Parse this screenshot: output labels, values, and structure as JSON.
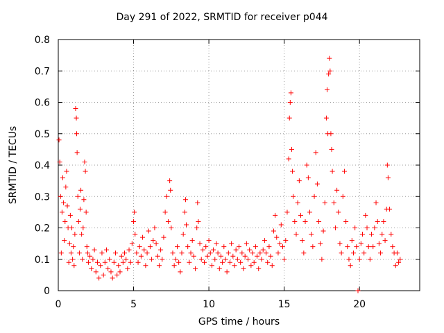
{
  "chart_data": {
    "type": "scatter",
    "title": "Day 291 of 2022, SRMTID for receiver p044",
    "xlabel": "GPS time / hours",
    "ylabel": "SRMTID / TECUs",
    "xlim": [
      0,
      24
    ],
    "ylim": [
      0,
      0.8
    ],
    "xticks": [
      0,
      5,
      10,
      15,
      20
    ],
    "yticks": [
      0,
      0.1,
      0.2,
      0.3,
      0.4,
      0.5,
      0.6,
      0.7,
      0.8
    ],
    "grid": true,
    "marker": "+",
    "color": "#ff0000",
    "series": [
      {
        "name": "p044",
        "points": [
          [
            0.05,
            0.48
          ],
          [
            0.1,
            0.41
          ],
          [
            0.15,
            0.3
          ],
          [
            0.2,
            0.12
          ],
          [
            0.25,
            0.25
          ],
          [
            0.3,
            0.36
          ],
          [
            0.35,
            0.28
          ],
          [
            0.4,
            0.16
          ],
          [
            0.45,
            0.22
          ],
          [
            0.5,
            0.33
          ],
          [
            0.55,
            0.38
          ],
          [
            0.6,
            0.27
          ],
          [
            0.65,
            0.2
          ],
          [
            0.7,
            0.09
          ],
          [
            0.75,
            0.15
          ],
          [
            0.8,
            0.24
          ],
          [
            0.85,
            0.12
          ],
          [
            0.9,
            0.2
          ],
          [
            0.95,
            0.1
          ],
          [
            1.0,
            0.14
          ],
          [
            1.05,
            0.08
          ],
          [
            1.1,
            0.18
          ],
          [
            1.15,
            0.58
          ],
          [
            1.2,
            0.55
          ],
          [
            1.22,
            0.5
          ],
          [
            1.25,
            0.44
          ],
          [
            1.3,
            0.3
          ],
          [
            1.35,
            0.22
          ],
          [
            1.4,
            0.12
          ],
          [
            1.45,
            0.26
          ],
          [
            1.5,
            0.32
          ],
          [
            1.55,
            0.18
          ],
          [
            1.6,
            0.1
          ],
          [
            1.65,
            0.2
          ],
          [
            1.7,
            0.29
          ],
          [
            1.75,
            0.41
          ],
          [
            1.8,
            0.38
          ],
          [
            1.85,
            0.25
          ],
          [
            1.9,
            0.14
          ],
          [
            1.95,
            0.12
          ],
          [
            2.0,
            0.09
          ],
          [
            2.1,
            0.11
          ],
          [
            2.2,
            0.07
          ],
          [
            2.3,
            0.1
          ],
          [
            2.4,
            0.13
          ],
          [
            2.5,
            0.06
          ],
          [
            2.6,
            0.09
          ],
          [
            2.7,
            0.04
          ],
          [
            2.8,
            0.08
          ],
          [
            2.9,
            0.12
          ],
          [
            3.0,
            0.05
          ],
          [
            3.1,
            0.09
          ],
          [
            3.2,
            0.13
          ],
          [
            3.3,
            0.07
          ],
          [
            3.4,
            0.1
          ],
          [
            3.5,
            0.06
          ],
          [
            3.6,
            0.04
          ],
          [
            3.7,
            0.09
          ],
          [
            3.8,
            0.12
          ],
          [
            3.9,
            0.05
          ],
          [
            4.0,
            0.08
          ],
          [
            4.1,
            0.06
          ],
          [
            4.2,
            0.11
          ],
          [
            4.3,
            0.09
          ],
          [
            4.4,
            0.12
          ],
          [
            4.5,
            0.1
          ],
          [
            4.6,
            0.07
          ],
          [
            4.7,
            0.13
          ],
          [
            4.8,
            0.09
          ],
          [
            4.9,
            0.15
          ],
          [
            5.0,
            0.22
          ],
          [
            5.05,
            0.25
          ],
          [
            5.1,
            0.18
          ],
          [
            5.2,
            0.12
          ],
          [
            5.3,
            0.09
          ],
          [
            5.4,
            0.14
          ],
          [
            5.5,
            0.11
          ],
          [
            5.6,
            0.17
          ],
          [
            5.7,
            0.13
          ],
          [
            5.8,
            0.08
          ],
          [
            5.9,
            0.12
          ],
          [
            6.0,
            0.19
          ],
          [
            6.1,
            0.14
          ],
          [
            6.2,
            0.1
          ],
          [
            6.3,
            0.16
          ],
          [
            6.4,
            0.2
          ],
          [
            6.5,
            0.15
          ],
          [
            6.6,
            0.11
          ],
          [
            6.7,
            0.08
          ],
          [
            6.8,
            0.13
          ],
          [
            6.9,
            0.1
          ],
          [
            7.0,
            0.17
          ],
          [
            7.1,
            0.25
          ],
          [
            7.2,
            0.3
          ],
          [
            7.3,
            0.22
          ],
          [
            7.4,
            0.35
          ],
          [
            7.45,
            0.32
          ],
          [
            7.5,
            0.2
          ],
          [
            7.6,
            0.12
          ],
          [
            7.7,
            0.08
          ],
          [
            7.8,
            0.1
          ],
          [
            7.9,
            0.14
          ],
          [
            8.0,
            0.09
          ],
          [
            8.1,
            0.06
          ],
          [
            8.2,
            0.12
          ],
          [
            8.3,
            0.18
          ],
          [
            8.4,
            0.25
          ],
          [
            8.45,
            0.29
          ],
          [
            8.5,
            0.21
          ],
          [
            8.6,
            0.14
          ],
          [
            8.7,
            0.09
          ],
          [
            8.8,
            0.12
          ],
          [
            8.9,
            0.16
          ],
          [
            9.0,
            0.11
          ],
          [
            9.1,
            0.07
          ],
          [
            9.2,
            0.2
          ],
          [
            9.25,
            0.28
          ],
          [
            9.3,
            0.22
          ],
          [
            9.4,
            0.15
          ],
          [
            9.5,
            0.1
          ],
          [
            9.6,
            0.13
          ],
          [
            9.7,
            0.09
          ],
          [
            9.8,
            0.14
          ],
          [
            9.9,
            0.11
          ],
          [
            10.0,
            0.16
          ],
          [
            10.1,
            0.12
          ],
          [
            10.2,
            0.08
          ],
          [
            10.3,
            0.13
          ],
          [
            10.4,
            0.1
          ],
          [
            10.5,
            0.15
          ],
          [
            10.6,
            0.12
          ],
          [
            10.7,
            0.07
          ],
          [
            10.8,
            0.11
          ],
          [
            10.9,
            0.09
          ],
          [
            11.0,
            0.14
          ],
          [
            11.1,
            0.1
          ],
          [
            11.2,
            0.06
          ],
          [
            11.3,
            0.12
          ],
          [
            11.4,
            0.09
          ],
          [
            11.5,
            0.15
          ],
          [
            11.6,
            0.11
          ],
          [
            11.7,
            0.08
          ],
          [
            11.8,
            0.13
          ],
          [
            11.9,
            0.1
          ],
          [
            12.0,
            0.14
          ],
          [
            12.1,
            0.09
          ],
          [
            12.2,
            0.12
          ],
          [
            12.3,
            0.07
          ],
          [
            12.4,
            0.11
          ],
          [
            12.5,
            0.15
          ],
          [
            12.6,
            0.1
          ],
          [
            12.7,
            0.13
          ],
          [
            12.8,
            0.08
          ],
          [
            12.9,
            0.12
          ],
          [
            13.0,
            0.09
          ],
          [
            13.1,
            0.14
          ],
          [
            13.2,
            0.11
          ],
          [
            13.3,
            0.07
          ],
          [
            13.4,
            0.12
          ],
          [
            13.5,
            0.1
          ],
          [
            13.6,
            0.13
          ],
          [
            13.7,
            0.16
          ],
          [
            13.8,
            0.12
          ],
          [
            13.9,
            0.09
          ],
          [
            14.0,
            0.14
          ],
          [
            14.1,
            0.11
          ],
          [
            14.2,
            0.08
          ],
          [
            14.3,
            0.19
          ],
          [
            14.4,
            0.24
          ],
          [
            14.5,
            0.17
          ],
          [
            14.6,
            0.12
          ],
          [
            14.7,
            0.15
          ],
          [
            14.8,
            0.21
          ],
          [
            14.9,
            0.14
          ],
          [
            15.0,
            0.1
          ],
          [
            15.1,
            0.16
          ],
          [
            15.2,
            0.25
          ],
          [
            15.3,
            0.42
          ],
          [
            15.35,
            0.55
          ],
          [
            15.4,
            0.6
          ],
          [
            15.45,
            0.63
          ],
          [
            15.5,
            0.45
          ],
          [
            15.55,
            0.38
          ],
          [
            15.6,
            0.3
          ],
          [
            15.7,
            0.22
          ],
          [
            15.8,
            0.18
          ],
          [
            15.9,
            0.28
          ],
          [
            16.0,
            0.35
          ],
          [
            16.1,
            0.24
          ],
          [
            16.2,
            0.16
          ],
          [
            16.3,
            0.12
          ],
          [
            16.4,
            0.22
          ],
          [
            16.5,
            0.4
          ],
          [
            16.6,
            0.36
          ],
          [
            16.7,
            0.25
          ],
          [
            16.8,
            0.18
          ],
          [
            16.9,
            0.14
          ],
          [
            17.0,
            0.3
          ],
          [
            17.1,
            0.44
          ],
          [
            17.2,
            0.34
          ],
          [
            17.3,
            0.22
          ],
          [
            17.4,
            0.15
          ],
          [
            17.5,
            0.1
          ],
          [
            17.6,
            0.19
          ],
          [
            17.7,
            0.28
          ],
          [
            17.8,
            0.55
          ],
          [
            17.85,
            0.64
          ],
          [
            17.9,
            0.5
          ],
          [
            17.95,
            0.69
          ],
          [
            18.0,
            0.74
          ],
          [
            18.05,
            0.7
          ],
          [
            18.1,
            0.5
          ],
          [
            18.15,
            0.45
          ],
          [
            18.2,
            0.38
          ],
          [
            18.3,
            0.28
          ],
          [
            18.4,
            0.2
          ],
          [
            18.5,
            0.32
          ],
          [
            18.6,
            0.25
          ],
          [
            18.7,
            0.15
          ],
          [
            18.8,
            0.12
          ],
          [
            18.9,
            0.3
          ],
          [
            19.0,
            0.38
          ],
          [
            19.1,
            0.22
          ],
          [
            19.2,
            0.14
          ],
          [
            19.3,
            0.1
          ],
          [
            19.4,
            0.08
          ],
          [
            19.5,
            0.16
          ],
          [
            19.6,
            0.12
          ],
          [
            19.7,
            0.2
          ],
          [
            19.8,
            0.14
          ],
          [
            19.9,
            0.0
          ],
          [
            20.0,
            0.1
          ],
          [
            20.1,
            0.15
          ],
          [
            20.2,
            0.18
          ],
          [
            20.3,
            0.12
          ],
          [
            20.4,
            0.24
          ],
          [
            20.5,
            0.2
          ],
          [
            20.6,
            0.14
          ],
          [
            20.7,
            0.1
          ],
          [
            20.8,
            0.18
          ],
          [
            20.9,
            0.14
          ],
          [
            21.0,
            0.2
          ],
          [
            21.1,
            0.28
          ],
          [
            21.2,
            0.22
          ],
          [
            21.3,
            0.15
          ],
          [
            21.4,
            0.12
          ],
          [
            21.5,
            0.18
          ],
          [
            21.6,
            0.22
          ],
          [
            21.7,
            0.16
          ],
          [
            21.8,
            0.26
          ],
          [
            21.85,
            0.4
          ],
          [
            21.9,
            0.36
          ],
          [
            22.0,
            0.26
          ],
          [
            22.1,
            0.18
          ],
          [
            22.2,
            0.14
          ],
          [
            22.3,
            0.12
          ],
          [
            22.4,
            0.08
          ],
          [
            22.5,
            0.12
          ],
          [
            22.6,
            0.09
          ],
          [
            22.7,
            0.1
          ]
        ]
      }
    ]
  }
}
